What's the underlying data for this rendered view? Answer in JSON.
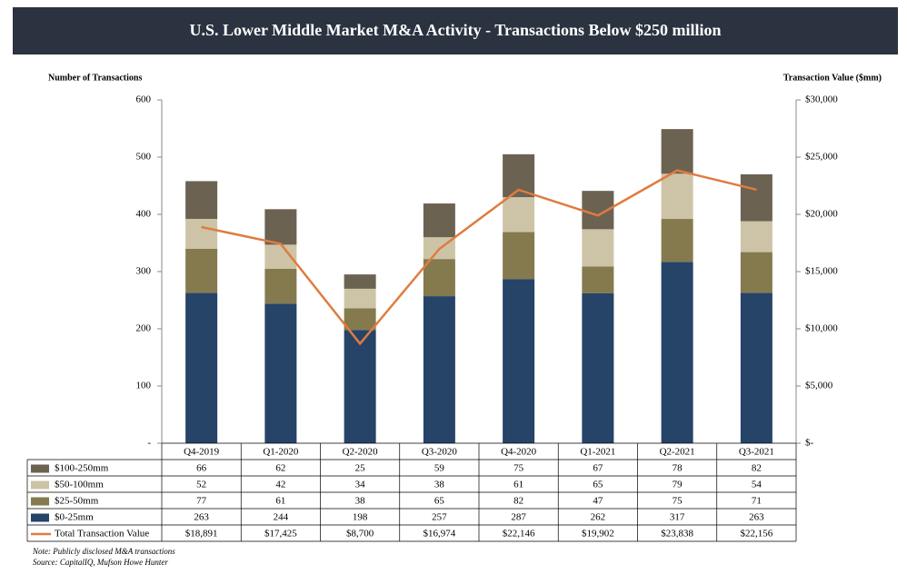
{
  "chart_data": {
    "type": "bar",
    "title": "U.S. Lower Middle Market M&A Activity - Transactions Below $250 million",
    "y_label": "Number of Transactions",
    "y2_label": "Transaction Value ($mm)",
    "categories": [
      "Q4-2019",
      "Q1-2020",
      "Q2-2020",
      "Q3-2020",
      "Q4-2020",
      "Q1-2021",
      "Q2-2021",
      "Q3-2021"
    ],
    "series": [
      {
        "name": "$100-250mm",
        "color": "#6b6252",
        "values": [
          66,
          62,
          25,
          59,
          75,
          67,
          78,
          82
        ]
      },
      {
        "name": "$50-100mm",
        "color": "#cdc4a7",
        "values": [
          52,
          42,
          34,
          38,
          61,
          65,
          79,
          54
        ]
      },
      {
        "name": "$25-50mm",
        "color": "#857a4e",
        "values": [
          77,
          61,
          38,
          65,
          82,
          47,
          75,
          71
        ]
      },
      {
        "name": "$0-25mm",
        "color": "#264368",
        "values": [
          263,
          244,
          198,
          257,
          287,
          262,
          317,
          263
        ]
      },
      {
        "name": "Total Transaction Value",
        "type": "line",
        "axis": "y2",
        "color": "#e07b3f",
        "values": [
          18891,
          17425,
          8700,
          16974,
          22146,
          19902,
          23838,
          22156
        ],
        "value_labels": [
          "$18,891",
          "$17,425",
          "$8,700",
          "$16,974",
          "$22,146",
          "$19,902",
          "$23,838",
          "$22,156"
        ]
      }
    ],
    "ylim": [
      0,
      600
    ],
    "yticks": [
      {
        "value": 0,
        "label": "-"
      },
      100,
      200,
      300,
      400,
      500,
      600
    ],
    "y2lim": [
      0,
      30000
    ],
    "y2ticks": [
      {
        "value": 0,
        "label": "$-"
      },
      {
        "value": 5000,
        "label": "$5,000"
      },
      {
        "value": 10000,
        "label": "$10,000"
      },
      {
        "value": 15000,
        "label": "$15,000"
      },
      {
        "value": 20000,
        "label": "$20,000"
      },
      {
        "value": 25000,
        "label": "$25,000"
      },
      {
        "value": 30000,
        "label": "$30,000"
      }
    ],
    "grid": false,
    "notes": [
      "Note: Publicly disclosed M&A transactions",
      "Source: CapitalIQ, Mufson Howe Hunter"
    ]
  }
}
